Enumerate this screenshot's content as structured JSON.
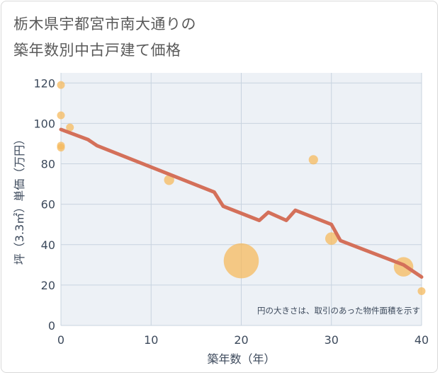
{
  "chart_data": {
    "type": "scatter",
    "title": [
      "栃木県宇都宮市南大通りの",
      "築年数別中古戸建て価格"
    ],
    "xlabel": "築年数（年）",
    "ylabel": "坪（3.3㎡）単価（万円）",
    "xlim": [
      0,
      40
    ],
    "ylim": [
      0,
      125
    ],
    "xticks": [
      0,
      10,
      20,
      30,
      40
    ],
    "yticks": [
      0,
      20,
      40,
      60,
      80,
      100,
      120
    ],
    "grid": true,
    "note": "円の大きさは、取引のあった物件面積を示す",
    "colors": {
      "points": "#f5b95e",
      "trend": "#d4705a",
      "grid": "#c8d3df",
      "plot_bg": "#edf1f6"
    },
    "points": [
      {
        "x": 0,
        "y": 119,
        "size": 1
      },
      {
        "x": 0,
        "y": 104,
        "size": 1
      },
      {
        "x": 0,
        "y": 89,
        "size": 1
      },
      {
        "x": 0,
        "y": 88,
        "size": 1
      },
      {
        "x": 1,
        "y": 98,
        "size": 1
      },
      {
        "x": 12,
        "y": 72,
        "size": 1.3
      },
      {
        "x": 20,
        "y": 32,
        "size": 4.5
      },
      {
        "x": 28,
        "y": 82,
        "size": 1.2
      },
      {
        "x": 30,
        "y": 43,
        "size": 1.6
      },
      {
        "x": 38,
        "y": 29,
        "size": 2.5
      },
      {
        "x": 40,
        "y": 17,
        "size": 1
      }
    ],
    "trend": {
      "x": [
        0,
        3,
        4,
        17,
        18,
        22,
        23,
        25,
        26,
        30,
        31,
        38,
        40
      ],
      "y": [
        97,
        92,
        89,
        66,
        59,
        52,
        56,
        52,
        57,
        50,
        42,
        30,
        24
      ]
    }
  }
}
